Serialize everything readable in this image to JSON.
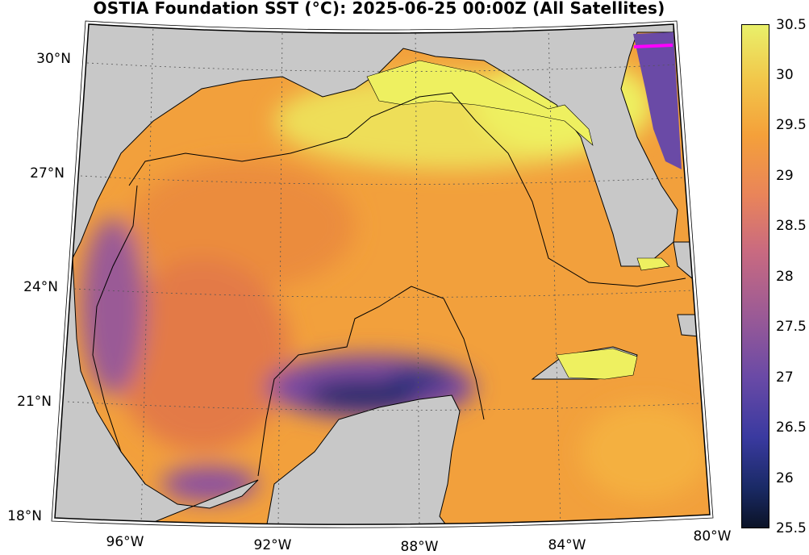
{
  "title": "OSTIA Foundation SST (°C): 2025-06-25 00:00Z (All Satellites)",
  "lat_labels": [
    "30°N",
    "27°N",
    "24°N",
    "21°N",
    "18°N"
  ],
  "lon_labels": [
    "96°W",
    "92°W",
    "88°W",
    "84°W",
    "80°W"
  ],
  "colorbar": {
    "ticks": [
      "30.5",
      "30",
      "29.5",
      "29",
      "28.5",
      "28",
      "27.5",
      "27",
      "26.5",
      "26",
      "25.5"
    ],
    "min": 25.5,
    "max": 30.5
  },
  "colors": {
    "land": "#c8c8c8",
    "warm": "#f0a23a",
    "hot": "#eef060",
    "cool": "#3a3aa0",
    "marker": "#ff00ff"
  }
}
